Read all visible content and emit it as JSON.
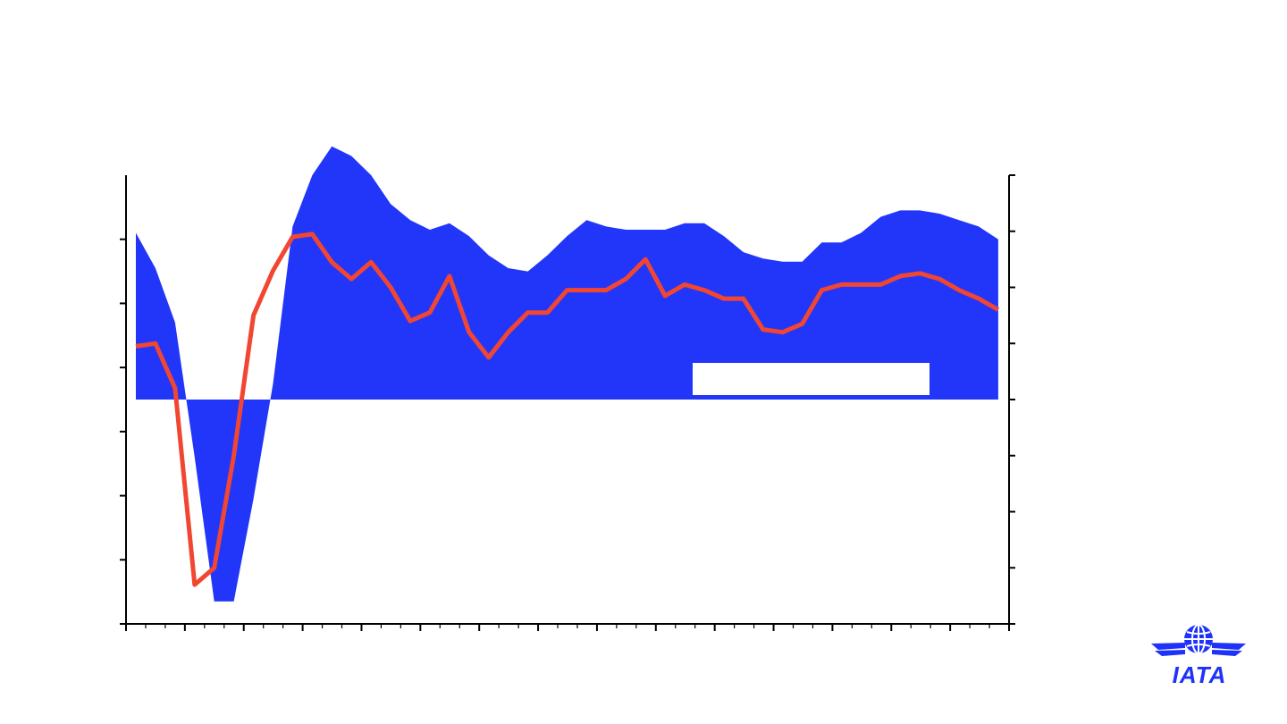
{
  "chart_data": {
    "type": "area+line",
    "title": "",
    "xlabel": "",
    "ylabel_left": "",
    "ylabel_right": "",
    "x": [
      1,
      2,
      3,
      4,
      5,
      6,
      7,
      8,
      9,
      10,
      11,
      12,
      13,
      14,
      15,
      16,
      17,
      18,
      19,
      20,
      21,
      22,
      23,
      24,
      25,
      26,
      27,
      28,
      29,
      30,
      31,
      32,
      33,
      34,
      35,
      36,
      37,
      38,
      39,
      40,
      41,
      42,
      43,
      44,
      45
    ],
    "ylim_left": [
      -7,
      7
    ],
    "ylim_right": [
      -3,
      5
    ],
    "left_ticks": [
      -7,
      -5,
      -3,
      -1,
      1,
      3,
      5
    ],
    "right_ticks": [
      -3,
      -2,
      -1,
      0,
      1,
      2,
      3,
      4,
      5
    ],
    "series": [
      {
        "axis": "left",
        "kind": "area",
        "color": "#2236fa",
        "values": [
          5.2,
          4.1,
          2.4,
          -1.8,
          -6.3,
          -6.3,
          -3.1,
          0.5,
          5.4,
          7.0,
          7.9,
          7.6,
          7.0,
          6.1,
          5.6,
          5.3,
          5.5,
          5.1,
          4.5,
          4.1,
          4.0,
          4.5,
          5.1,
          5.6,
          5.4,
          5.3,
          5.3,
          5.3,
          5.5,
          5.5,
          5.1,
          4.6,
          4.4,
          4.3,
          4.3,
          4.9,
          4.9,
          5.2,
          5.7,
          5.9,
          5.9,
          5.8,
          5.6,
          5.4,
          5.0
        ]
      },
      {
        "axis": "right",
        "kind": "line",
        "color": "#f04632",
        "values": [
          1.95,
          2.0,
          1.2,
          -2.3,
          -2.0,
          0.0,
          2.5,
          3.3,
          3.9,
          3.95,
          3.45,
          3.15,
          3.45,
          3.0,
          2.4,
          2.55,
          3.2,
          2.2,
          1.75,
          2.2,
          2.55,
          2.55,
          2.95,
          2.95,
          2.95,
          3.15,
          3.5,
          2.85,
          3.05,
          2.95,
          2.8,
          2.8,
          2.25,
          2.2,
          2.35,
          2.95,
          3.05,
          3.05,
          3.05,
          3.2,
          3.25,
          3.15,
          2.95,
          2.8,
          2.6
        ]
      }
    ],
    "grid": false,
    "legend": "bottom-right"
  },
  "logo": {
    "text": "IATA",
    "color": "#1e32fa"
  }
}
